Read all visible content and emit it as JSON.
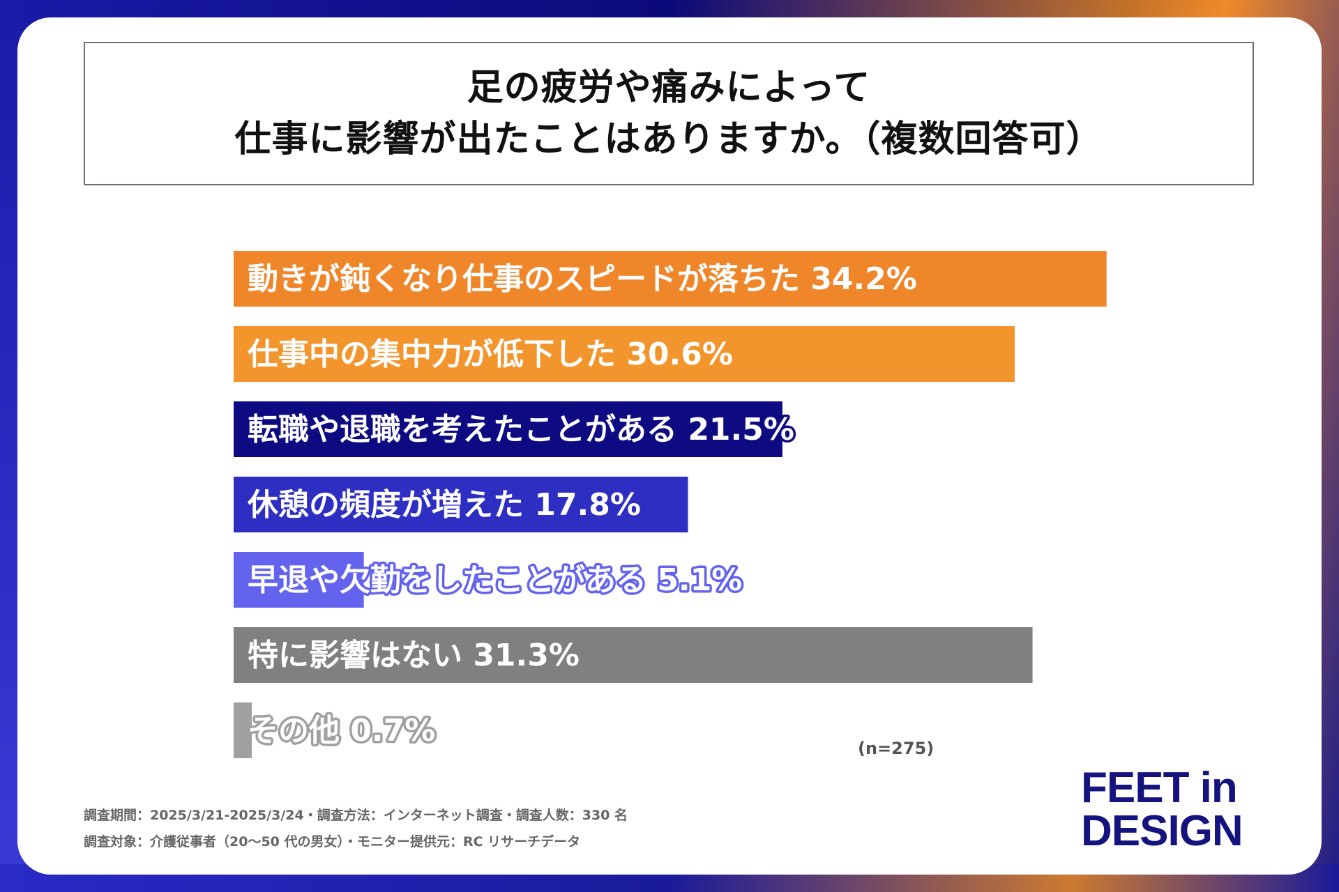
{
  "title_lines": [
    "足の疲労や痛みによって",
    "仕事に影響が出たことはありますか。（複数回答可）"
  ],
  "chart_data": {
    "type": "bar",
    "orientation": "horizontal",
    "categories": [
      "動きが鈍くなり仕事のスピードが落ちた",
      "仕事中の集中力が低下した",
      "転職や退職を考えたことがある",
      "休憩の頻度が増えた",
      "早退や欠勤をしたことがある",
      "特に影響はない",
      "その他"
    ],
    "values": [
      34.2,
      30.6,
      21.5,
      17.8,
      5.1,
      31.3,
      0.7
    ],
    "value_labels": [
      "34.2%",
      "30.6%",
      "21.5%",
      "17.8%",
      "5.1%",
      "31.3%",
      "0.7%"
    ],
    "colors": [
      "#f0862a",
      "#f2952d",
      "#0d0a82",
      "#2e2ec2",
      "#6363ee",
      "#808080",
      "#a0a0a0"
    ],
    "xlim": [
      0,
      40
    ],
    "grid": false,
    "sample_size": "(n=275)"
  },
  "footnotes": [
    "調査期間：2025/3/21-2025/3/24・調査方法：インターネット調査・調査人数：330 名",
    "調査対象：介護従事者（20～50 代の男女）・モニター提供元：RC リサーチデータ"
  ],
  "logo": [
    "FEET in",
    "DESIGN"
  ]
}
